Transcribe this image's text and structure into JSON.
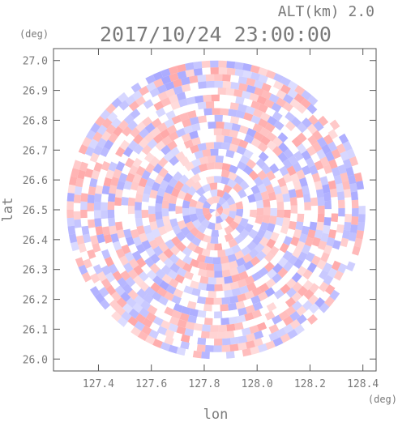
{
  "header": {
    "altitude_label": "ALT(km) 2.0",
    "timestamp": "2017/10/24 23:00:00"
  },
  "chart_data": {
    "type": "heatmap",
    "title": "2017/10/24 23:00:00",
    "xlabel": "lon",
    "ylabel": "lat",
    "x_unit": "(deg)",
    "y_unit": "(deg)",
    "xlim": [
      127.23,
      128.45
    ],
    "ylim": [
      25.96,
      27.04
    ],
    "x_ticks": [
      "127.4",
      "127.6",
      "127.8",
      "128.0",
      "128.2",
      "128.4"
    ],
    "x_tick_values": [
      127.4,
      127.6,
      127.8,
      128.0,
      128.2,
      128.4
    ],
    "y_ticks": [
      "26.0",
      "26.1",
      "26.2",
      "26.3",
      "26.4",
      "26.5",
      "26.6",
      "26.7",
      "26.8",
      "26.9",
      "27.0"
    ],
    "y_tick_values": [
      26.0,
      26.1,
      26.2,
      26.3,
      26.4,
      26.5,
      26.6,
      26.7,
      26.8,
      26.9,
      27.0
    ],
    "domain": {
      "center_lon": 127.845,
      "center_lat": 26.5,
      "radius_lat_deg": 0.5
    },
    "colors": {
      "positive": "#ff9e9e",
      "negative": "#9e9eff",
      "neutral": "#ffffff"
    },
    "grid": false
  }
}
